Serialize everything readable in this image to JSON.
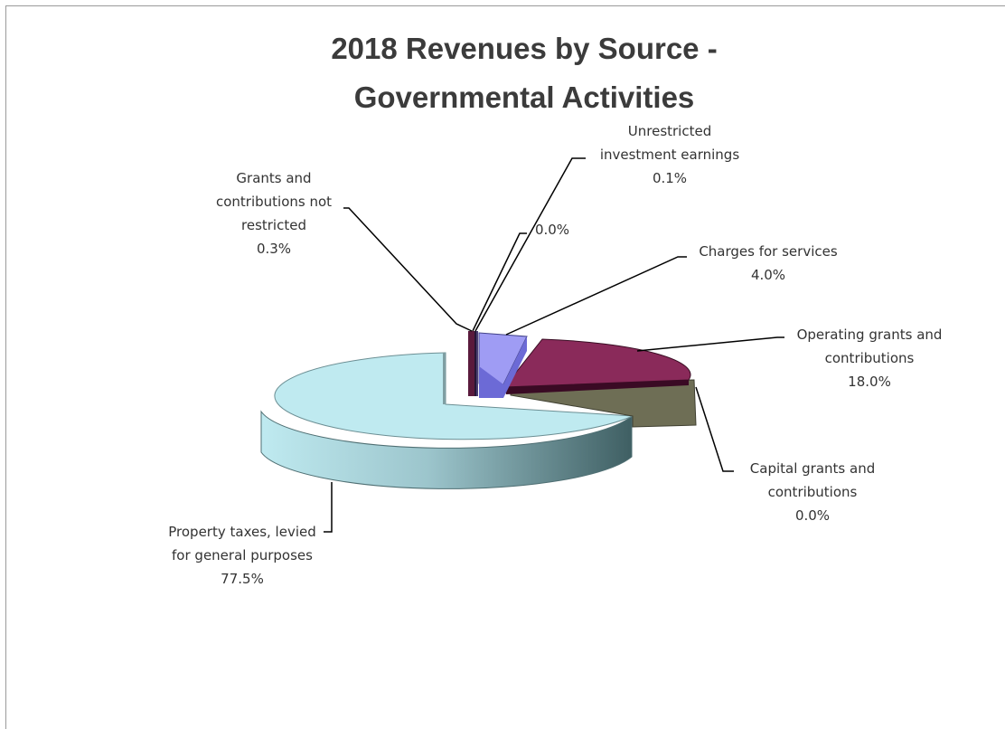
{
  "chart_data": {
    "type": "pie",
    "title_line1": "2018 Revenues by Source -",
    "title_line2": "Governmental  Activities",
    "slices": [
      {
        "label": [
          "Property taxes, levied",
          "for general purposes"
        ],
        "pct_text": "77.5%",
        "value": 77.5,
        "color": "#bfeaf0"
      },
      {
        "label": [
          "Grants and",
          "contributions not",
          "restricted"
        ],
        "pct_text": "0.3%",
        "value": 0.3,
        "color": "#5a1a3c"
      },
      {
        "label": [],
        "pct_text": "0.0%",
        "value": 0.0,
        "color": "#2a2a6a"
      },
      {
        "label": [
          "Unrestricted",
          "investment earnings"
        ],
        "pct_text": "0.1%",
        "value": 0.1,
        "color": "#3c2a5c"
      },
      {
        "label": [
          "Charges for services"
        ],
        "pct_text": "4.0%",
        "value": 4.0,
        "color": "#9f9cf4"
      },
      {
        "label": [
          "Operating grants and",
          "contributions"
        ],
        "pct_text": "18.0%",
        "value": 18.0,
        "color": "#8a2a5a"
      },
      {
        "label": [
          "Capital grants and",
          "contributions"
        ],
        "pct_text": "0.0%",
        "value": 0.0,
        "color": "#6b6b52"
      }
    ]
  }
}
